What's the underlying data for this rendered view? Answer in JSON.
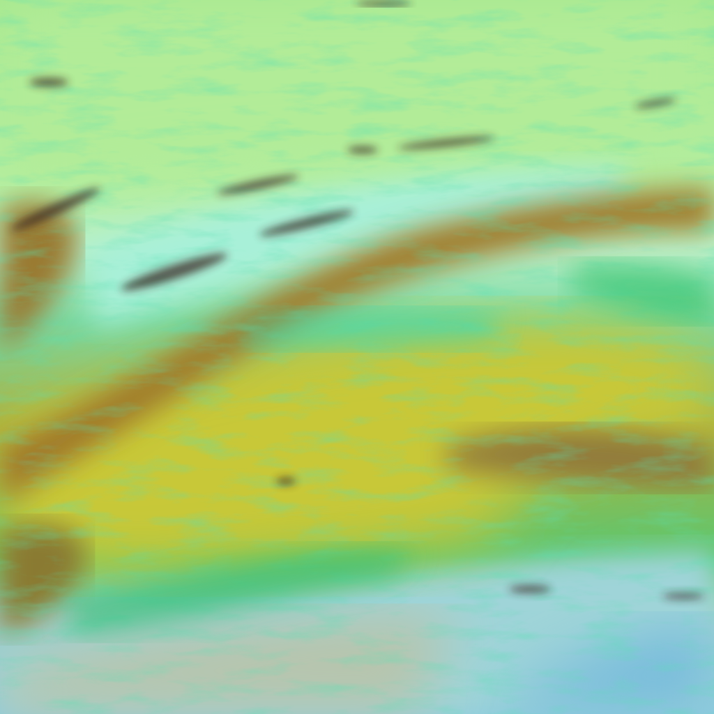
{
  "image": {
    "kind": "false-color satellite cloud imagery",
    "colors": {
      "upper_cloud": "#a6e88e",
      "upper_cloud_light": "#c2f0a6",
      "cyan_cloud": "#9ff0e0",
      "brown_band": "#9a7a2a",
      "orange_band": "#b0882e",
      "yellow_region": "#c8c83a",
      "green_texture": "#2fc070",
      "teal_texture": "#30d8b8",
      "dark_shadow": "#3a2a20",
      "lower_sky": "#9ad4d8",
      "lower_haze": "#b8c8b0",
      "lower_blue": "#7cc0dc"
    }
  }
}
